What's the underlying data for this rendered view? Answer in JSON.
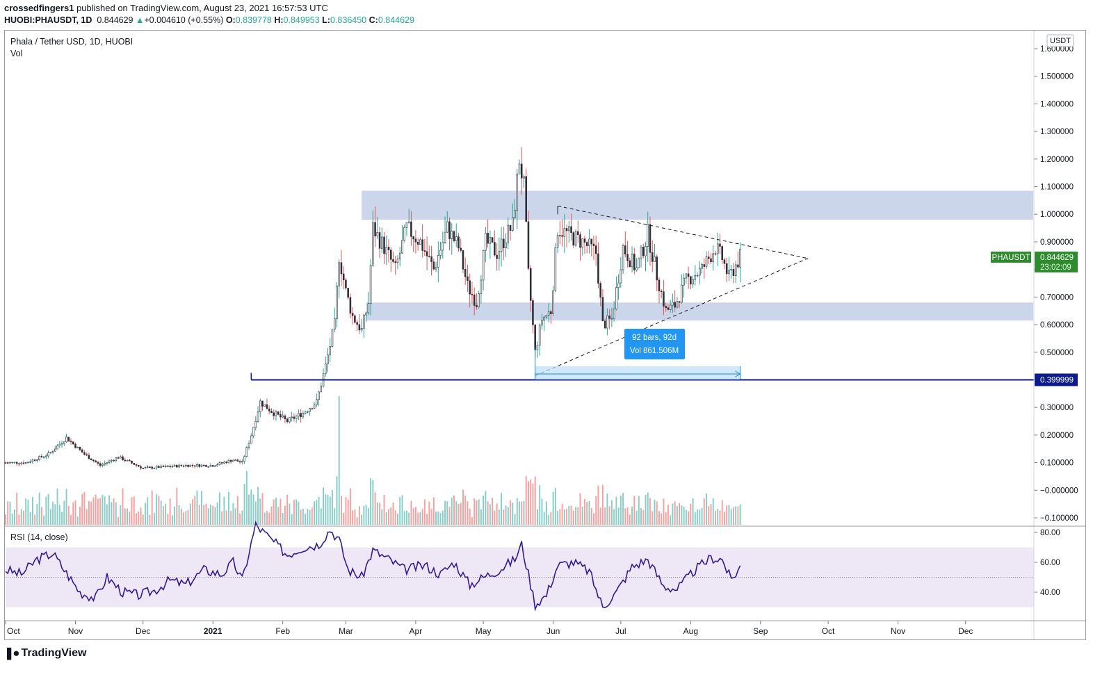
{
  "header": {
    "author": "crossedfingers1",
    "published": "published on TradingView.com, August 23, 2021 16:57:53 UTC",
    "symbol": "HUOBI:PHAUSDT, 1D",
    "last": "0.844629",
    "change": "+0.004610 (+0.55%)",
    "open_label": "O:",
    "open": "0.839778",
    "high_label": "H:",
    "high": "0.849953",
    "low_label": "L:",
    "low": "0.836450",
    "close_label": "C:",
    "close": "0.844629"
  },
  "pane": {
    "title": "Phala / Tether USD, 1D, HUOBI",
    "vol_label": "Vol",
    "rsi_label": "RSI (14, close)"
  },
  "price_scale": {
    "currency": "USDT",
    "current_symbol": "PHAUSDT",
    "current_price": "0.844629",
    "countdown": "23:02:09",
    "support_price": "0.399999"
  },
  "measure_tooltip": {
    "line1": "92 bars, 92d",
    "line2": "Vol 861.506M"
  },
  "brand": "TradingView",
  "colors": {
    "up": "#26a69a",
    "down": "#ef5350",
    "candle_body": "#2a2e39",
    "zone": "#c8d4ea",
    "support": "#0d1b8c",
    "rsi": "#311b92",
    "rsi_band": "#ede7f6",
    "current_price": "#2e8b2e",
    "tooltip": "#2196f3"
  },
  "chart_data": {
    "type": "candlestick",
    "title": "Phala / Tether USD, 1D, HUOBI",
    "y_ticks": [
      "1.600000",
      "1.500000",
      "1.400000",
      "1.300000",
      "1.200000",
      "1.100000",
      "1.000000",
      "0.900000",
      "0.800000",
      "0.700000",
      "0.600000",
      "0.500000",
      "0.400000",
      "0.300000",
      "0.200000",
      "0.100000",
      "−0.000000",
      "−0.100000"
    ],
    "y_range": [
      -0.13,
      1.62
    ],
    "x_ticks": [
      "Oct",
      "Nov",
      "Dec",
      "2021",
      "Feb",
      "Mar",
      "Apr",
      "May",
      "Jun",
      "Jul",
      "Aug",
      "Sep",
      "Oct",
      "Nov",
      "Dec"
    ],
    "x_range": [
      "2020-10-01",
      "2021-12-31"
    ],
    "price_path": [
      [
        "2020-10-01",
        0.1
      ],
      [
        "2020-10-10",
        0.1
      ],
      [
        "2020-10-20",
        0.13
      ],
      [
        "2020-10-28",
        0.19
      ],
      [
        "2020-11-05",
        0.13
      ],
      [
        "2020-11-12",
        0.09
      ],
      [
        "2020-11-20",
        0.12
      ],
      [
        "2020-12-01",
        0.08
      ],
      [
        "2020-12-20",
        0.09
      ],
      [
        "2021-01-01",
        0.09
      ],
      [
        "2021-01-10",
        0.11
      ],
      [
        "2021-01-14",
        0.1
      ],
      [
        "2021-01-18",
        0.2
      ],
      [
        "2021-01-22",
        0.32
      ],
      [
        "2021-01-28",
        0.28
      ],
      [
        "2021-02-03",
        0.25
      ],
      [
        "2021-02-10",
        0.28
      ],
      [
        "2021-02-16",
        0.32
      ],
      [
        "2021-02-20",
        0.45
      ],
      [
        "2021-02-24",
        0.6
      ],
      [
        "2021-02-26",
        0.85
      ],
      [
        "2021-03-01",
        0.72
      ],
      [
        "2021-03-04",
        0.63
      ],
      [
        "2021-03-08",
        0.58
      ],
      [
        "2021-03-11",
        0.68
      ],
      [
        "2021-03-13",
        0.95
      ],
      [
        "2021-03-18",
        0.88
      ],
      [
        "2021-03-23",
        0.8
      ],
      [
        "2021-03-28",
        0.95
      ],
      [
        "2021-04-03",
        0.9
      ],
      [
        "2021-04-09",
        0.8
      ],
      [
        "2021-04-15",
        0.95
      ],
      [
        "2021-04-20",
        0.88
      ],
      [
        "2021-04-24",
        0.74
      ],
      [
        "2021-04-28",
        0.68
      ],
      [
        "2021-05-02",
        0.9
      ],
      [
        "2021-05-07",
        0.86
      ],
      [
        "2021-05-11",
        0.92
      ],
      [
        "2021-05-14",
        0.96
      ],
      [
        "2021-05-17",
        1.2
      ],
      [
        "2021-05-19",
        1.1
      ],
      [
        "2021-05-21",
        0.78
      ],
      [
        "2021-05-24",
        0.5
      ],
      [
        "2021-05-27",
        0.62
      ],
      [
        "2021-05-31",
        0.65
      ],
      [
        "2021-06-03",
        0.95
      ],
      [
        "2021-06-09",
        0.92
      ],
      [
        "2021-06-14",
        0.9
      ],
      [
        "2021-06-20",
        0.86
      ],
      [
        "2021-06-23",
        0.6
      ],
      [
        "2021-06-27",
        0.62
      ],
      [
        "2021-07-02",
        0.88
      ],
      [
        "2021-07-08",
        0.8
      ],
      [
        "2021-07-13",
        0.93
      ],
      [
        "2021-07-17",
        0.78
      ],
      [
        "2021-07-21",
        0.65
      ],
      [
        "2021-07-25",
        0.67
      ],
      [
        "2021-07-30",
        0.76
      ],
      [
        "2021-08-06",
        0.8
      ],
      [
        "2021-08-12",
        0.88
      ],
      [
        "2021-08-15",
        0.84
      ],
      [
        "2021-08-18",
        0.77
      ],
      [
        "2021-08-23",
        0.845
      ]
    ],
    "zones": [
      {
        "from": "2021-03-08",
        "to": "2021-12-31",
        "low": 0.98,
        "high": 1.085
      },
      {
        "from": "2021-03-10",
        "to": "2021-12-31",
        "low": 0.615,
        "high": 0.68
      }
    ],
    "support_line": {
      "from": "2021-01-18",
      "price": 0.399999
    },
    "triangle": {
      "upper": [
        [
          "2021-06-03",
          1.03
        ],
        [
          "2021-09-22",
          0.84
        ]
      ],
      "lower": [
        [
          "2021-05-24",
          0.415
        ],
        [
          "2021-09-22",
          0.84
        ]
      ]
    },
    "measure": {
      "from": "2021-05-24",
      "to": "2021-08-23",
      "bars": 92,
      "days": 92
    },
    "rsi": {
      "ticks": [
        "80.00",
        "60.00",
        "40.00"
      ],
      "range": [
        22,
        93
      ],
      "band": [
        30,
        70
      ],
      "midline": 50,
      "path": [
        [
          "2020-10-01",
          55
        ],
        [
          "2020-10-08",
          52
        ],
        [
          "2020-10-15",
          62
        ],
        [
          "2020-10-22",
          66
        ],
        [
          "2020-10-27",
          55
        ],
        [
          "2020-11-03",
          40
        ],
        [
          "2020-11-10",
          36
        ],
        [
          "2020-11-15",
          50
        ],
        [
          "2020-11-22",
          40
        ],
        [
          "2020-11-29",
          38
        ],
        [
          "2020-12-06",
          41
        ],
        [
          "2020-12-13",
          48
        ],
        [
          "2020-12-20",
          45
        ],
        [
          "2020-12-28",
          55
        ],
        [
          "2021-01-05",
          52
        ],
        [
          "2021-01-10",
          60
        ],
        [
          "2021-01-14",
          48
        ],
        [
          "2021-01-20",
          85
        ],
        [
          "2021-01-27",
          75
        ],
        [
          "2021-02-03",
          65
        ],
        [
          "2021-02-10",
          70
        ],
        [
          "2021-02-17",
          72
        ],
        [
          "2021-02-22",
          82
        ],
        [
          "2021-02-26",
          75
        ],
        [
          "2021-03-02",
          55
        ],
        [
          "2021-03-08",
          50
        ],
        [
          "2021-03-13",
          68
        ],
        [
          "2021-03-20",
          62
        ],
        [
          "2021-03-27",
          55
        ],
        [
          "2021-04-05",
          58
        ],
        [
          "2021-04-12",
          52
        ],
        [
          "2021-04-18",
          60
        ],
        [
          "2021-04-25",
          45
        ],
        [
          "2021-05-01",
          50
        ],
        [
          "2021-05-08",
          55
        ],
        [
          "2021-05-15",
          62
        ],
        [
          "2021-05-18",
          72
        ],
        [
          "2021-05-21",
          52
        ],
        [
          "2021-05-24",
          32
        ],
        [
          "2021-05-29",
          38
        ],
        [
          "2021-06-03",
          58
        ],
        [
          "2021-06-10",
          60
        ],
        [
          "2021-06-17",
          54
        ],
        [
          "2021-06-23",
          30
        ],
        [
          "2021-06-29",
          40
        ],
        [
          "2021-07-06",
          57
        ],
        [
          "2021-07-13",
          62
        ],
        [
          "2021-07-20",
          44
        ],
        [
          "2021-07-26",
          42
        ],
        [
          "2021-08-03",
          55
        ],
        [
          "2021-08-10",
          63
        ],
        [
          "2021-08-15",
          62
        ],
        [
          "2021-08-19",
          48
        ],
        [
          "2021-08-23",
          57
        ]
      ]
    },
    "volume": {
      "note": "relative daily volume bars; spike near 2021-02-26"
    }
  }
}
